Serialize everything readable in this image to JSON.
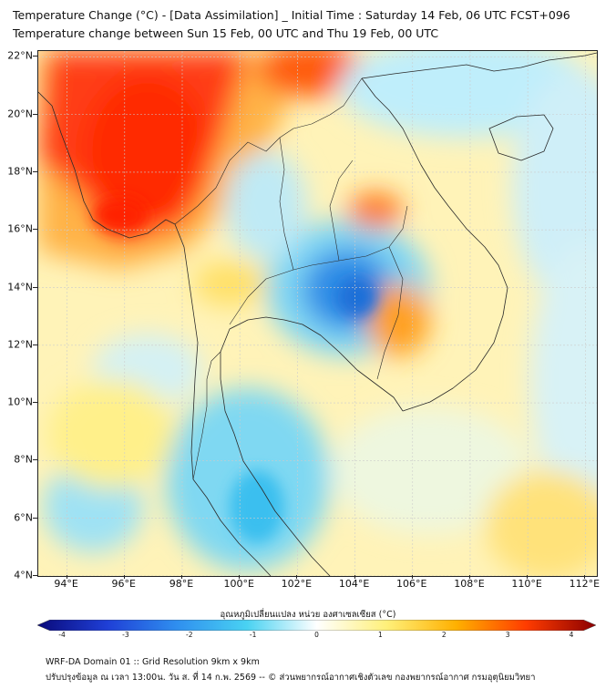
{
  "title": {
    "line1": "Temperature Change (°C) - [Data Assimilation] _ Initial Time : Saturday 14 Feb, 06 UTC FCST+096",
    "line2": "Temperature change between Sun 15 Feb, 00 UTC and Thu 19 Feb, 00 UTC"
  },
  "axes": {
    "lat_labels": [
      "22°N",
      "20°N",
      "18°N",
      "16°N",
      "14°N",
      "12°N",
      "10°N",
      "8°N",
      "6°N",
      "4°N"
    ],
    "lon_labels": [
      "94°E",
      "96°E",
      "98°E",
      "100°E",
      "102°E",
      "104°E",
      "106°E",
      "108°E",
      "110°E",
      "112°E"
    ],
    "lat_range": [
      4,
      22.2
    ],
    "lon_range": [
      93,
      112.4
    ]
  },
  "colorbar": {
    "label": "อุณหภูมิเปลี่ยนแปลง หน่วย องศาเซลเซียส (°C)",
    "ticks": [
      "-4",
      "-3",
      "-2",
      "-1",
      "0",
      "1",
      "2",
      "3",
      "4"
    ],
    "range": [
      -4,
      4
    ],
    "colors": [
      "#0a0a7a",
      "#1f3fd6",
      "#2f8fef",
      "#49d2f2",
      "#ffffff",
      "#fff07a",
      "#ffb000",
      "#ff3c00",
      "#8b0000"
    ]
  },
  "footer": {
    "line1": "WRF-DA Domain 01 :: Grid Resolution 9km x 9km",
    "line2": "ปรับปรุงข้อมูล ณ เวลา 13:00น. วัน ส. ที่ 14 ก.พ. 2569 -- © ส่วนพยากรณ์อากาศเชิงตัวเลข กองพยากรณ์อากาศ กรมอุตุนิยมวิทยา"
  }
}
